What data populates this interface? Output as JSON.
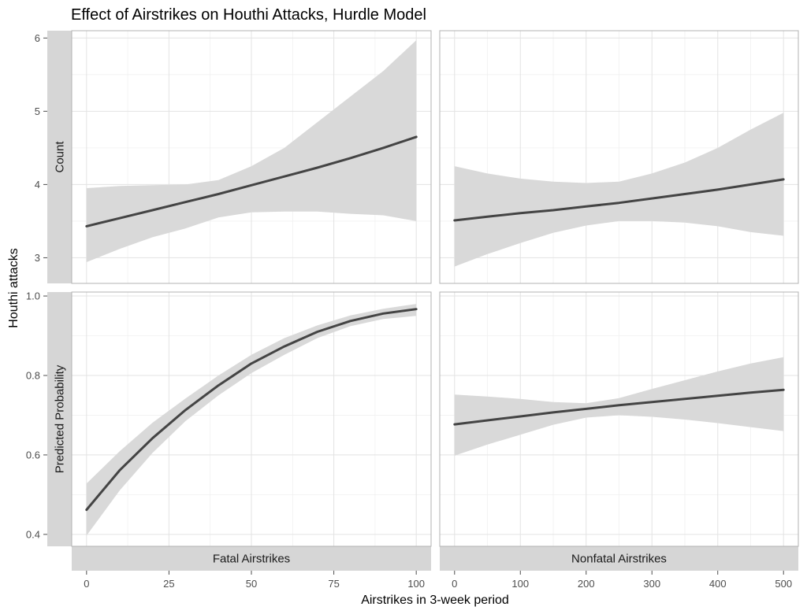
{
  "chart_data": {
    "type": "line",
    "title": "Effect of Airstrikes on Houthi Attacks, Hurdle Model",
    "xlabel": "Airstrikes in 3-week period",
    "ylabel": "Houthi attacks",
    "row_facets": [
      "Count",
      "Predicted Probability"
    ],
    "col_facets": [
      "Fatal Airstrikes",
      "Nonfatal Airstrikes"
    ],
    "grid": true,
    "line_color": "#444444",
    "ribbon_color": "#d9d9d9",
    "strip_color": "#d6d6d6",
    "panels": [
      {
        "row": 0,
        "col": 0,
        "xlim": [
          -4.5,
          104.5
        ],
        "ylim": [
          2.65,
          6.1
        ],
        "xticks": [
          0,
          25,
          50,
          75,
          100
        ],
        "xtick_labels": [
          "0",
          "25",
          "50",
          "75",
          "100"
        ],
        "yticks": [
          3,
          4,
          5,
          6
        ],
        "ytick_labels": [
          "3",
          "4",
          "5",
          "6"
        ],
        "x": [
          0,
          10,
          20,
          30,
          40,
          50,
          60,
          70,
          80,
          90,
          100
        ],
        "y": [
          3.43,
          3.54,
          3.65,
          3.76,
          3.87,
          3.99,
          4.11,
          4.23,
          4.36,
          4.5,
          4.65
        ],
        "lower": [
          2.94,
          3.12,
          3.28,
          3.4,
          3.55,
          3.62,
          3.63,
          3.63,
          3.6,
          3.58,
          3.5
        ],
        "upper": [
          3.95,
          3.98,
          3.99,
          4.0,
          4.06,
          4.25,
          4.5,
          4.85,
          5.2,
          5.55,
          5.97
        ]
      },
      {
        "row": 0,
        "col": 1,
        "xlim": [
          -22.5,
          522.5
        ],
        "ylim": [
          2.65,
          6.1
        ],
        "xticks": [
          0,
          100,
          200,
          300,
          400,
          500
        ],
        "xtick_labels": [
          "0",
          "100",
          "200",
          "300",
          "400",
          "500"
        ],
        "yticks": [
          3,
          4,
          5,
          6
        ],
        "ytick_labels": [
          "3",
          "4",
          "5",
          "6"
        ],
        "x": [
          0,
          50,
          100,
          150,
          200,
          250,
          300,
          350,
          400,
          450,
          500
        ],
        "y": [
          3.51,
          3.56,
          3.61,
          3.65,
          3.7,
          3.75,
          3.81,
          3.87,
          3.93,
          4.0,
          4.07
        ],
        "lower": [
          2.88,
          3.05,
          3.2,
          3.34,
          3.44,
          3.5,
          3.5,
          3.48,
          3.43,
          3.35,
          3.3
        ],
        "upper": [
          4.25,
          4.15,
          4.08,
          4.04,
          4.02,
          4.04,
          4.15,
          4.3,
          4.5,
          4.75,
          4.98
        ]
      },
      {
        "row": 1,
        "col": 0,
        "xlim": [
          -4.5,
          104.5
        ],
        "ylim": [
          0.37,
          1.01
        ],
        "xticks": [
          0,
          25,
          50,
          75,
          100
        ],
        "xtick_labels": [
          "0",
          "25",
          "50",
          "75",
          "100"
        ],
        "yticks": [
          0.4,
          0.6,
          0.8,
          1.0
        ],
        "ytick_labels": [
          "0.4",
          "0.6",
          "0.8",
          "1.0"
        ],
        "x": [
          0,
          10,
          20,
          30,
          40,
          50,
          60,
          70,
          80,
          90,
          100
        ],
        "y": [
          0.462,
          0.561,
          0.642,
          0.713,
          0.775,
          0.83,
          0.873,
          0.91,
          0.937,
          0.956,
          0.967
        ],
        "lower": [
          0.397,
          0.51,
          0.605,
          0.685,
          0.75,
          0.806,
          0.852,
          0.894,
          0.924,
          0.942,
          0.95
        ],
        "upper": [
          0.528,
          0.609,
          0.681,
          0.742,
          0.8,
          0.852,
          0.894,
          0.926,
          0.951,
          0.968,
          0.98
        ]
      },
      {
        "row": 1,
        "col": 1,
        "xlim": [
          -22.5,
          522.5
        ],
        "ylim": [
          0.37,
          1.01
        ],
        "xticks": [
          0,
          100,
          200,
          300,
          400,
          500
        ],
        "xtick_labels": [
          "0",
          "100",
          "200",
          "300",
          "400",
          "500"
        ],
        "yticks": [
          0.4,
          0.6,
          0.8,
          1.0
        ],
        "ytick_labels": [
          "0.4",
          "0.6",
          "0.8",
          "1.0"
        ],
        "x": [
          0,
          50,
          100,
          150,
          200,
          250,
          300,
          350,
          400,
          450,
          500
        ],
        "y": [
          0.677,
          0.687,
          0.697,
          0.707,
          0.716,
          0.725,
          0.733,
          0.741,
          0.749,
          0.757,
          0.764
        ],
        "lower": [
          0.598,
          0.626,
          0.651,
          0.676,
          0.694,
          0.7,
          0.696,
          0.689,
          0.68,
          0.67,
          0.66
        ],
        "upper": [
          0.752,
          0.747,
          0.741,
          0.733,
          0.73,
          0.743,
          0.766,
          0.788,
          0.81,
          0.83,
          0.846
        ]
      }
    ]
  }
}
